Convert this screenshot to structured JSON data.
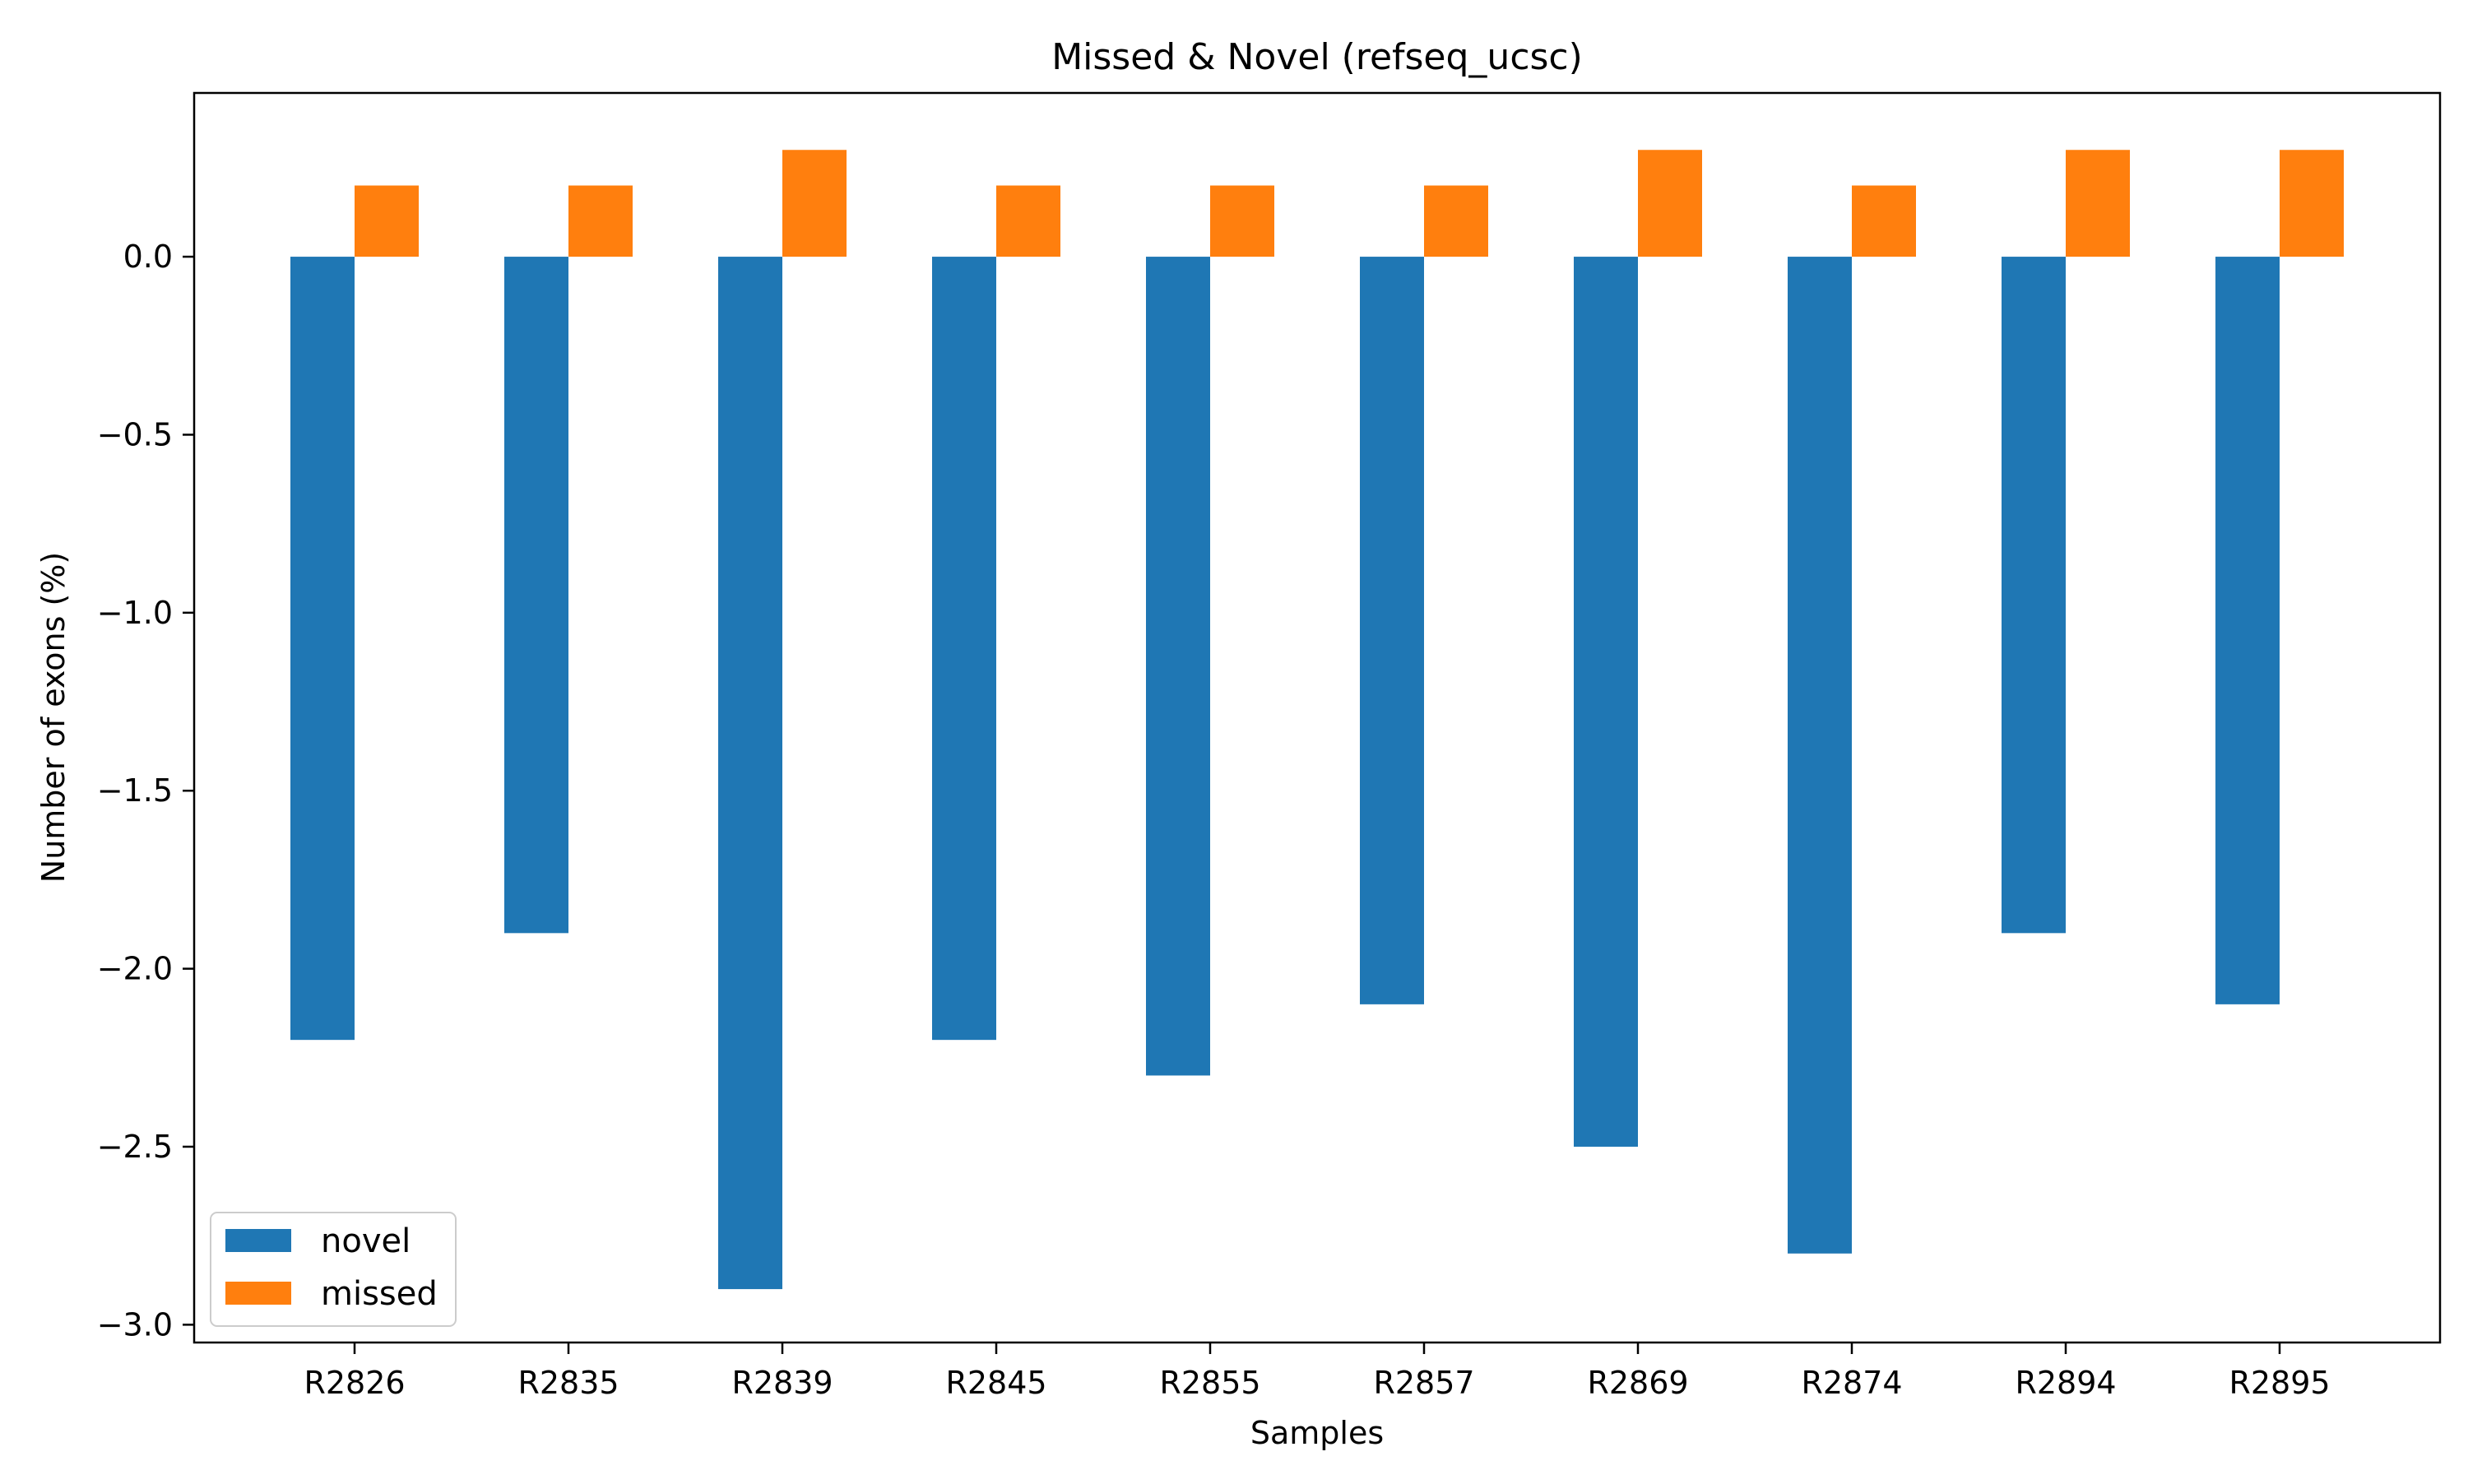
{
  "chart_data": {
    "type": "bar",
    "title": "Missed & Novel (refseq_ucsc)",
    "xlabel": "Samples",
    "ylabel": "Number of exons (%)",
    "categories": [
      "R2826",
      "R2835",
      "R2839",
      "R2845",
      "R2855",
      "R2857",
      "R2869",
      "R2874",
      "R2894",
      "R2895"
    ],
    "series": [
      {
        "name": "novel",
        "color": "#1f77b4",
        "values": [
          -2.2,
          -1.9,
          -2.9,
          -2.2,
          -2.3,
          -2.1,
          -2.5,
          -2.8,
          -1.9,
          -2.1
        ]
      },
      {
        "name": "missed",
        "color": "#ff7f0e",
        "values": [
          0.2,
          0.2,
          0.3,
          0.2,
          0.2,
          0.2,
          0.3,
          0.2,
          0.3,
          0.3
        ]
      }
    ],
    "ylim": [
      -3.05,
      0.46
    ],
    "yticks": [
      0.0,
      -0.5,
      -1.0,
      -1.5,
      -2.0,
      -2.5,
      -3.0
    ],
    "ytick_labels": [
      "0.0",
      "−0.5",
      "−1.0",
      "−1.5",
      "−2.0",
      "−2.5",
      "−3.0"
    ],
    "grid": false,
    "legend_position": "lower-left"
  }
}
